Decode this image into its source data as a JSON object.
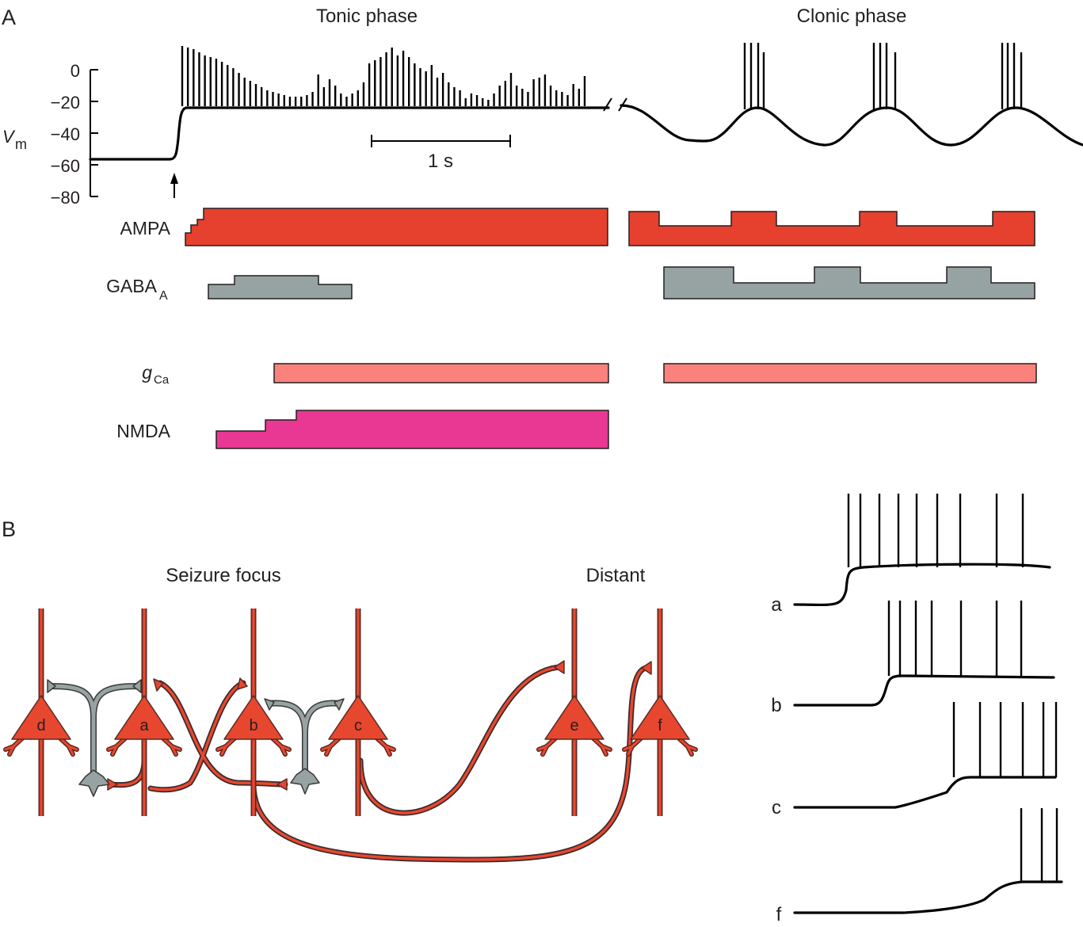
{
  "panels": {
    "a": "A",
    "b": "B"
  },
  "phases": {
    "tonic": "Tonic phase",
    "clonic": "Clonic phase"
  },
  "yaxis": {
    "label_main": "V",
    "label_sub": "m",
    "ticks": [
      "0",
      "−20",
      "−40",
      "−60",
      "−80"
    ]
  },
  "scale_bar": "1 s",
  "channels": {
    "ampa": "AMPA",
    "gaba_main": "GABA",
    "gaba_sub": "A",
    "gca_main": "g",
    "gca_sub": "Ca",
    "nmda": "NMDA"
  },
  "circuit": {
    "focus_label": "Seizure focus",
    "distant_label": "Distant",
    "neurons": [
      "d",
      "a",
      "b",
      "c",
      "e",
      "f"
    ]
  },
  "traces": [
    "a",
    "b",
    "c",
    "f"
  ],
  "colors": {
    "ampa": "#e6402e",
    "gaba": "#96a3a2",
    "gca": "#fb817c",
    "nmda": "#e93893",
    "neuron": "#e8472f",
    "interneuron": "#97a3a2"
  }
}
